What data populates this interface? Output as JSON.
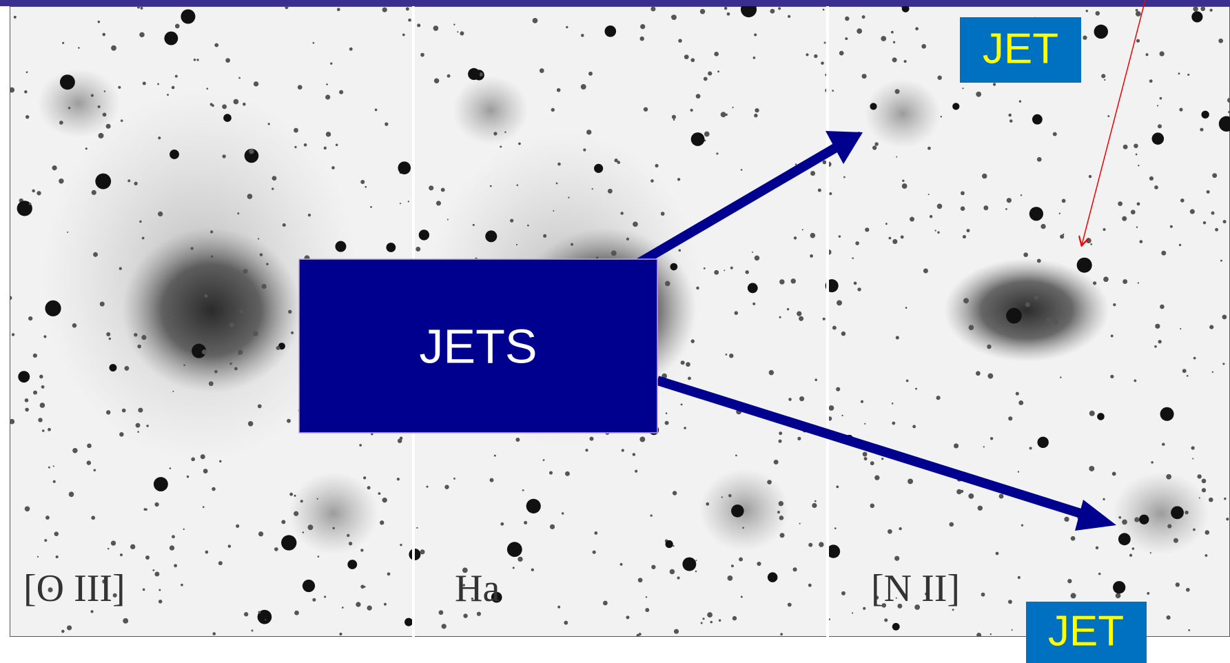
{
  "panels": [
    {
      "label": "[O III]"
    },
    {
      "label": "Ha"
    },
    {
      "label": "[N II]"
    }
  ],
  "callouts": {
    "main": "JETS",
    "top": "JET",
    "bottom": "JET"
  }
}
